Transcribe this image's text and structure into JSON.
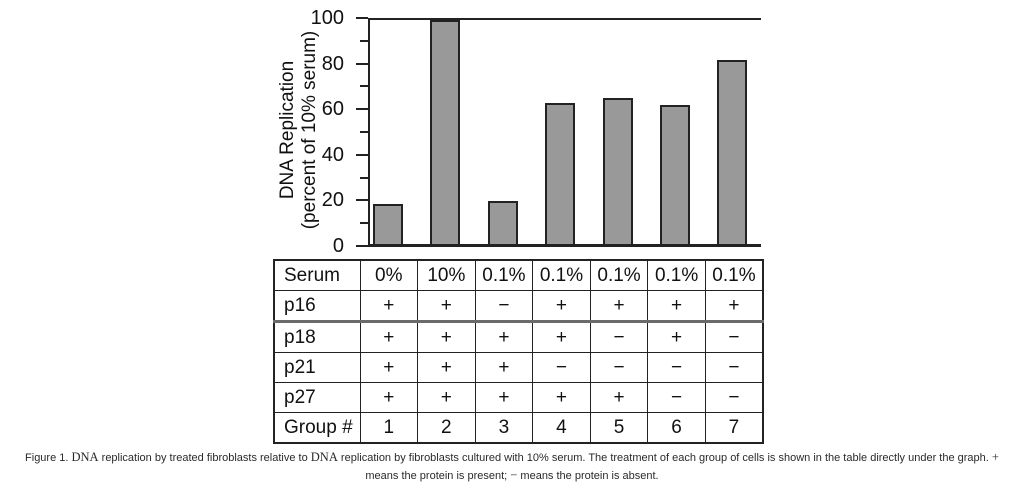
{
  "figure": {
    "caption": {
      "line1_segments": [
        {
          "text": "Figure 1. ",
          "style": "sans"
        },
        {
          "text": "DNA",
          "style": "serif"
        },
        {
          "text": " replication by treated fibroblasts relative to ",
          "style": "sans"
        },
        {
          "text": "DNA",
          "style": "serif"
        },
        {
          "text": " replication by fibroblasts cultured with 10% serum. The treatment of each group of cells is shown in the table directly under the graph. ",
          "style": "sans"
        },
        {
          "text": "+",
          "style": "serif"
        }
      ],
      "line2_segments": [
        {
          "text": "means the protein is present; ",
          "style": "sans"
        },
        {
          "text": "−",
          "style": "serif"
        },
        {
          "text": " means the protein is absent.",
          "style": "sans"
        }
      ]
    }
  },
  "chart_data": {
    "type": "bar",
    "title": "",
    "ylabel_line1": "DNA Replication",
    "ylabel_line2": "(percent of 10% serum)",
    "xlabel": "",
    "categories": [
      "1",
      "2",
      "3",
      "4",
      "5",
      "6",
      "7"
    ],
    "values": [
      18,
      100,
      19,
      63,
      65,
      62,
      82
    ],
    "ylim": [
      0,
      100
    ],
    "yticks_major": [
      0,
      20,
      40,
      60,
      80,
      100
    ],
    "yticks_minor": [
      10,
      30,
      50,
      70,
      90
    ],
    "bar_color": "#999999",
    "bar_border_color": "#222222",
    "grid": false,
    "legend": false
  },
  "table": {
    "rows": [
      {
        "label": "Serum",
        "values": [
          "0%",
          "10%",
          "0.1%",
          "0.1%",
          "0.1%",
          "0.1%",
          "0.1%"
        ]
      },
      {
        "label": "p16",
        "values": [
          "+",
          "+",
          "−",
          "+",
          "+",
          "+",
          "+"
        ]
      },
      {
        "label": "p18",
        "values": [
          "+",
          "+",
          "+",
          "+",
          "−",
          "+",
          "−"
        ]
      },
      {
        "label": "p21",
        "values": [
          "+",
          "+",
          "+",
          "−",
          "−",
          "−",
          "−"
        ]
      },
      {
        "label": "p27",
        "values": [
          "+",
          "+",
          "+",
          "+",
          "+",
          "−",
          "−"
        ]
      },
      {
        "label": "Group #",
        "values": [
          "1",
          "2",
          "3",
          "4",
          "5",
          "6",
          "7"
        ]
      }
    ]
  }
}
